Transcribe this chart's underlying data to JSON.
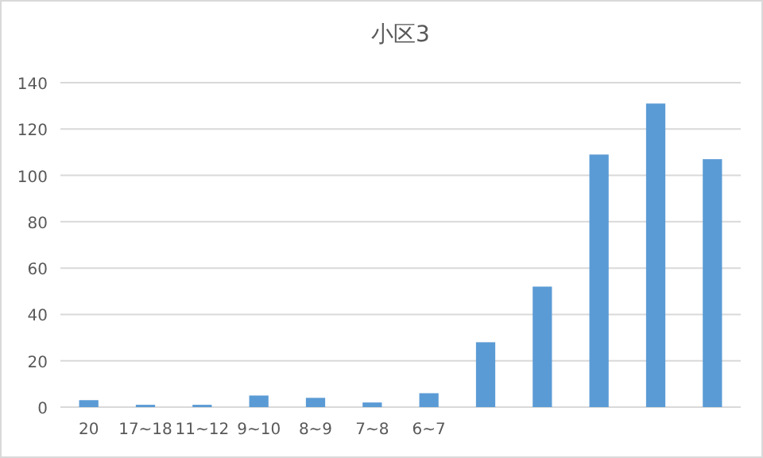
{
  "chart_data": {
    "type": "bar",
    "title": "小区3",
    "categories": [
      "20",
      "17~18",
      "11~12",
      "9~10",
      "8~9",
      "7~8",
      "6~7",
      null,
      null,
      null,
      null,
      null
    ],
    "values": [
      3,
      1,
      1,
      5,
      4,
      2,
      6,
      28,
      52,
      109,
      131,
      107
    ],
    "color": "#5b9bd5",
    "ylim": [
      0,
      140
    ],
    "yticks": [
      0,
      20,
      40,
      60,
      80,
      100,
      120,
      140
    ],
    "grid": "y"
  }
}
